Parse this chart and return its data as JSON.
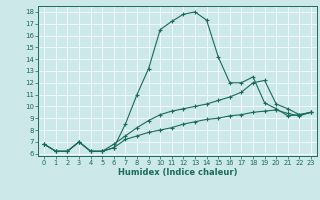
{
  "xlabel": "Humidex (Indice chaleur)",
  "bg_color": "#cce8e8",
  "line_color": "#1a6b5a",
  "xlim": [
    -0.5,
    23.5
  ],
  "ylim": [
    5.8,
    18.5
  ],
  "yticks": [
    6,
    7,
    8,
    9,
    10,
    11,
    12,
    13,
    14,
    15,
    16,
    17,
    18
  ],
  "xticks": [
    0,
    1,
    2,
    3,
    4,
    5,
    6,
    7,
    8,
    9,
    10,
    11,
    12,
    13,
    14,
    15,
    16,
    17,
    18,
    19,
    20,
    21,
    22,
    23
  ],
  "series": [
    {
      "x": [
        0,
        1,
        2,
        3,
        4,
        5,
        6,
        7,
        8,
        9,
        10,
        11,
        12,
        13,
        14,
        15,
        16,
        17,
        18,
        19,
        20,
        21,
        22,
        23
      ],
      "y": [
        6.8,
        6.2,
        6.2,
        7.0,
        6.2,
        6.2,
        6.5,
        8.5,
        11.0,
        13.2,
        16.5,
        17.2,
        17.8,
        18.0,
        17.3,
        14.2,
        12.0,
        12.0,
        12.5,
        10.3,
        9.8,
        9.2,
        9.3,
        9.5
      ]
    },
    {
      "x": [
        0,
        1,
        2,
        3,
        4,
        5,
        6,
        7,
        8,
        9,
        10,
        11,
        12,
        13,
        14,
        15,
        16,
        17,
        18,
        19,
        20,
        21,
        22,
        23
      ],
      "y": [
        6.8,
        6.2,
        6.2,
        7.0,
        6.2,
        6.2,
        6.8,
        7.5,
        8.2,
        8.8,
        9.3,
        9.6,
        9.8,
        10.0,
        10.2,
        10.5,
        10.8,
        11.2,
        12.0,
        12.2,
        10.2,
        9.8,
        9.3,
        9.5
      ]
    },
    {
      "x": [
        0,
        1,
        2,
        3,
        4,
        5,
        6,
        7,
        8,
        9,
        10,
        11,
        12,
        13,
        14,
        15,
        16,
        17,
        18,
        19,
        20,
        21,
        22,
        23
      ],
      "y": [
        6.8,
        6.2,
        6.2,
        7.0,
        6.2,
        6.2,
        6.5,
        7.2,
        7.5,
        7.8,
        8.0,
        8.2,
        8.5,
        8.7,
        8.9,
        9.0,
        9.2,
        9.3,
        9.5,
        9.6,
        9.7,
        9.4,
        9.2,
        9.5
      ]
    }
  ]
}
